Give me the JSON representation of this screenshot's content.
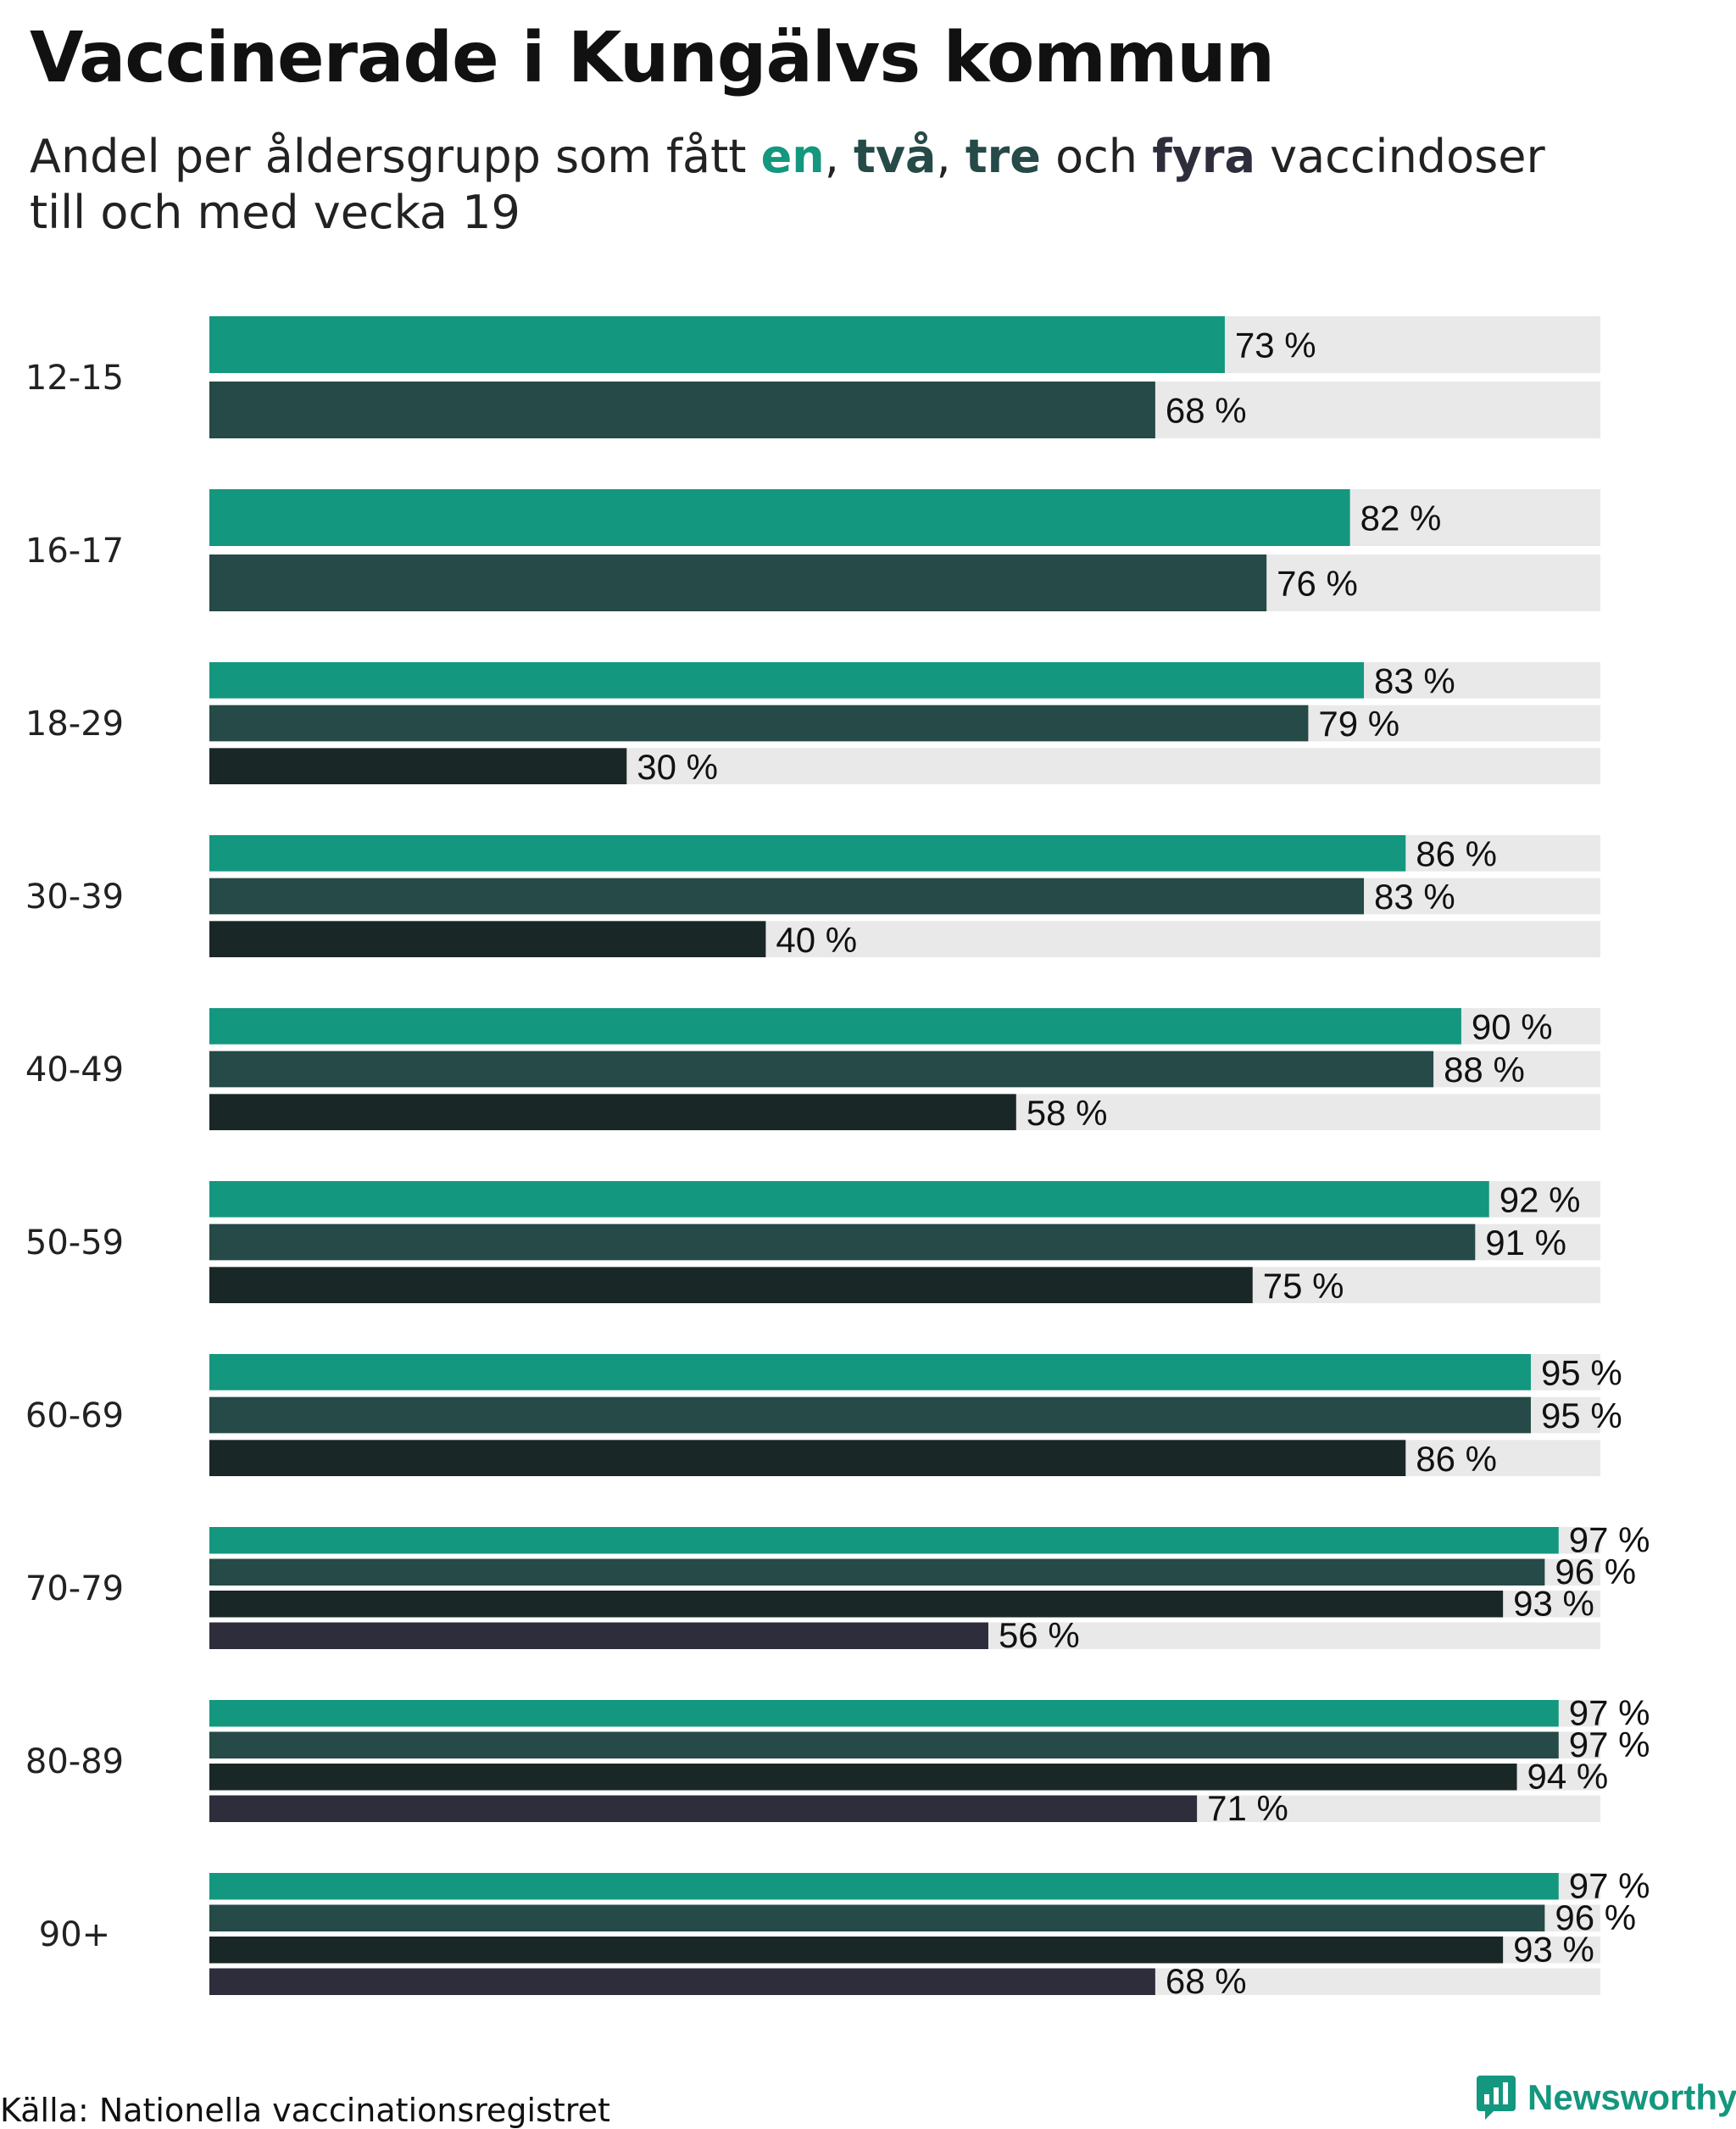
{
  "title": "Vaccinerade i Kungälvs kommun",
  "subtitle": {
    "prefix": "Andel per åldersgrupp som fått ",
    "dose1": "en",
    "sep1": ", ",
    "dose2": "två",
    "sep2": ", ",
    "dose3": "tre",
    "sep3": " och ",
    "dose4": "fyra",
    "line1_suffix": " vaccindoser",
    "line2": "till och med vecka 19"
  },
  "source": "Källa: Nationella vaccinationsregistret",
  "logo": {
    "text": "Newsworthy",
    "icon": "newsworthy-chart-icon"
  },
  "colors": {
    "dose1": "#14977f",
    "dose2": "#254a47",
    "dose3": "#192826",
    "dose4": "#2e2d3b",
    "track": "#e9e9e9"
  },
  "chart_data": {
    "type": "bar",
    "orientation": "horizontal",
    "xlim": [
      0,
      100
    ],
    "unit": "%",
    "categories": [
      "12-15",
      "16-17",
      "18-29",
      "30-39",
      "40-49",
      "50-59",
      "60-69",
      "70-79",
      "80-89",
      "90+"
    ],
    "series": [
      {
        "name": "en",
        "values": [
          73,
          82,
          83,
          86,
          90,
          92,
          95,
          97,
          97,
          97
        ]
      },
      {
        "name": "två",
        "values": [
          68,
          76,
          79,
          83,
          88,
          91,
          95,
          96,
          97,
          96
        ]
      },
      {
        "name": "tre",
        "values": [
          null,
          null,
          30,
          40,
          58,
          75,
          86,
          93,
          94,
          93
        ]
      },
      {
        "name": "fyra",
        "values": [
          null,
          null,
          null,
          null,
          null,
          null,
          null,
          56,
          71,
          68
        ]
      }
    ],
    "value_labels": [
      [
        "73 %",
        "68 %"
      ],
      [
        "82 %",
        "76 %"
      ],
      [
        "83 %",
        "79 %",
        "30 %"
      ],
      [
        "86 %",
        "83 %",
        "40 %"
      ],
      [
        "90 %",
        "88 %",
        "58 %"
      ],
      [
        "92 %",
        "91 %",
        "75 %"
      ],
      [
        "95 %",
        "95 %",
        "86 %"
      ],
      [
        "97 %",
        "96 %",
        "93 %",
        "56 %"
      ],
      [
        "97 %",
        "97 %",
        "94 %",
        "71 %"
      ],
      [
        "97 %",
        "96 %",
        "93 %",
        "68 %"
      ]
    ],
    "grid": false,
    "legend": "none (series named in subtitle)"
  }
}
